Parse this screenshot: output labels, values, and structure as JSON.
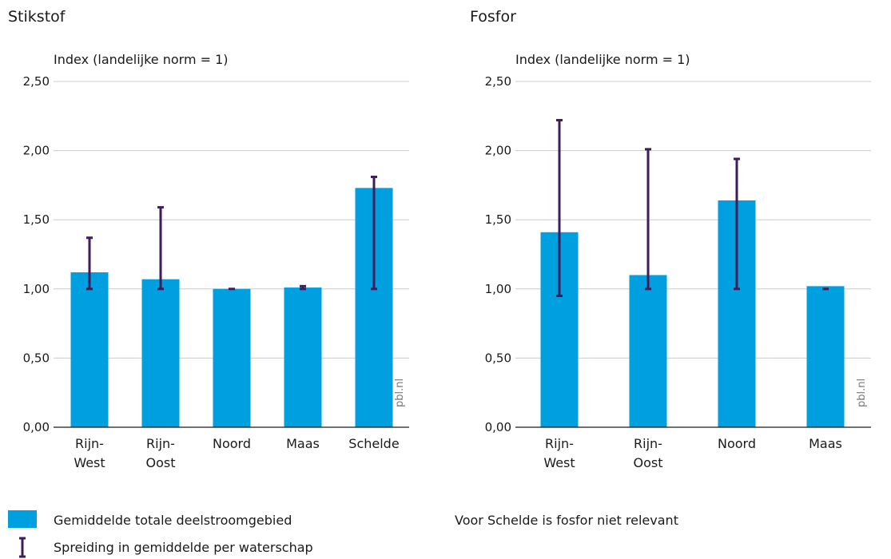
{
  "colors": {
    "bar": "#009fdf",
    "errorbar": "#3d1d5c",
    "grid": "#cccccc",
    "text": "#1a1a1a",
    "source": "#7a7a7a"
  },
  "yticks": [
    "0,00",
    "0,50",
    "1,00",
    "1,50",
    "2,00",
    "2,50"
  ],
  "source_label": "pbl.nl",
  "legend": {
    "bar_label": "Gemiddelde totale deelstroomgebied",
    "errorbar_label": "Spreiding in gemiddelde per waterschap"
  },
  "note": "Voor Schelde is fosfor niet relevant",
  "chart_data": [
    {
      "type": "bar",
      "title": "Stikstof",
      "ylabel": "Index (landelijke norm = 1)",
      "ylim": [
        0,
        2.5
      ],
      "grid": true,
      "categories": [
        [
          "Rijn-",
          "West"
        ],
        [
          "Rijn-",
          "Oost"
        ],
        [
          "Noord"
        ],
        [
          "Maas"
        ],
        [
          "Schelde"
        ]
      ],
      "values": [
        1.12,
        1.07,
        1.0,
        1.01,
        1.73
      ],
      "error_low": [
        1.0,
        1.0,
        1.0,
        1.0,
        1.0
      ],
      "error_high": [
        1.37,
        1.59,
        1.0,
        1.02,
        1.81
      ]
    },
    {
      "type": "bar",
      "title": "Fosfor",
      "ylabel": "Index (landelijke norm = 1)",
      "ylim": [
        0,
        2.5
      ],
      "grid": true,
      "categories": [
        [
          "Rijn-",
          "West"
        ],
        [
          "Rijn-",
          "Oost"
        ],
        [
          "Noord"
        ],
        [
          "Maas"
        ]
      ],
      "values": [
        1.41,
        1.1,
        1.64,
        1.02
      ],
      "error_low": [
        0.95,
        1.0,
        1.0,
        1.0
      ],
      "error_high": [
        2.22,
        2.01,
        1.94,
        1.0
      ]
    }
  ]
}
